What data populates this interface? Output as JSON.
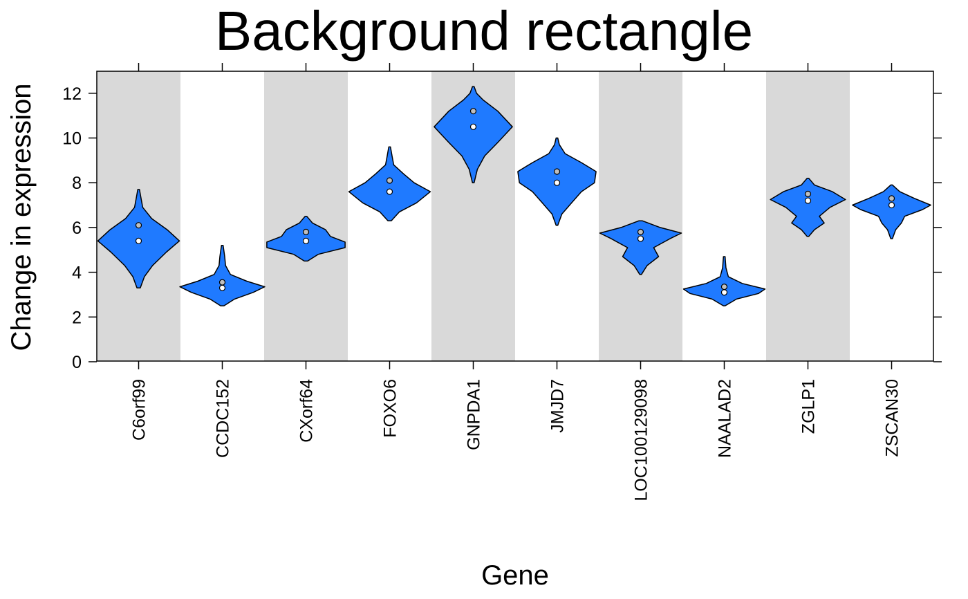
{
  "chart_data": {
    "type": "violin",
    "title": "Background rectangle",
    "xlabel": "Gene",
    "ylabel": "Change in expression",
    "ylim": [
      0,
      13
    ],
    "yticks": [
      0,
      2,
      4,
      6,
      8,
      10,
      12
    ],
    "grid": false,
    "legend": "none",
    "colors": {
      "violin_fill": "#1f7aff",
      "background_band": "#d9d9d9",
      "point_fill": "#ffffff",
      "point_fill_alt": "#bfbfbf"
    },
    "background_bands": [
      "C6orf99",
      "CXorf64",
      "GNPDA1",
      "LOC100129098",
      "ZGLP1"
    ],
    "categories": [
      "C6orf99",
      "CCDC152",
      "CXorf64",
      "FOXO6",
      "GNPDA1",
      "JMJD7",
      "LOC100129098",
      "NAALAD2",
      "ZGLP1",
      "ZSCAN30"
    ],
    "violins": [
      {
        "gene": "C6orf99",
        "min": 3.3,
        "max": 7.7,
        "profile": [
          [
            3.3,
            0.02
          ],
          [
            3.8,
            0.07
          ],
          [
            4.3,
            0.17
          ],
          [
            4.9,
            0.34
          ],
          [
            5.4,
            0.5
          ],
          [
            5.9,
            0.35
          ],
          [
            6.4,
            0.16
          ],
          [
            6.9,
            0.05
          ],
          [
            7.3,
            0.03
          ],
          [
            7.7,
            0.01
          ]
        ],
        "points": [
          5.4,
          6.1
        ]
      },
      {
        "gene": "CCDC152",
        "min": 2.5,
        "max": 5.2,
        "profile": [
          [
            2.5,
            0.02
          ],
          [
            2.8,
            0.15
          ],
          [
            3.1,
            0.38
          ],
          [
            3.35,
            0.52
          ],
          [
            3.6,
            0.3
          ],
          [
            3.9,
            0.1
          ],
          [
            4.3,
            0.04
          ],
          [
            4.7,
            0.03
          ],
          [
            5.2,
            0.01
          ]
        ],
        "points": [
          3.3,
          3.55
        ]
      },
      {
        "gene": "CXorf64",
        "min": 4.5,
        "max": 6.5,
        "profile": [
          [
            4.5,
            0.02
          ],
          [
            4.8,
            0.15
          ],
          [
            5.1,
            0.48
          ],
          [
            5.35,
            0.48
          ],
          [
            5.6,
            0.3
          ],
          [
            5.9,
            0.24
          ],
          [
            6.2,
            0.08
          ],
          [
            6.5,
            0.01
          ]
        ],
        "points": [
          5.4,
          5.8
        ]
      },
      {
        "gene": "FOXO6",
        "min": 6.3,
        "max": 9.6,
        "profile": [
          [
            6.3,
            0.02
          ],
          [
            6.7,
            0.12
          ],
          [
            7.1,
            0.33
          ],
          [
            7.6,
            0.5
          ],
          [
            8.0,
            0.3
          ],
          [
            8.4,
            0.17
          ],
          [
            8.8,
            0.05
          ],
          [
            9.2,
            0.03
          ],
          [
            9.6,
            0.01
          ]
        ],
        "points": [
          7.6,
          8.1
        ]
      },
      {
        "gene": "GNPDA1",
        "min": 8.0,
        "max": 12.3,
        "profile": [
          [
            8.0,
            0.01
          ],
          [
            8.6,
            0.05
          ],
          [
            9.2,
            0.14
          ],
          [
            9.8,
            0.3
          ],
          [
            10.5,
            0.48
          ],
          [
            11.2,
            0.3
          ],
          [
            11.7,
            0.12
          ],
          [
            12.0,
            0.04
          ],
          [
            12.3,
            0.01
          ]
        ],
        "points": [
          10.5,
          11.2
        ]
      },
      {
        "gene": "JMJD7",
        "min": 6.1,
        "max": 10.0,
        "profile": [
          [
            6.1,
            0.01
          ],
          [
            6.6,
            0.06
          ],
          [
            7.1,
            0.18
          ],
          [
            7.6,
            0.3
          ],
          [
            8.0,
            0.46
          ],
          [
            8.5,
            0.48
          ],
          [
            8.9,
            0.3
          ],
          [
            9.3,
            0.1
          ],
          [
            9.7,
            0.03
          ],
          [
            10.0,
            0.01
          ]
        ],
        "points": [
          8.0,
          8.5
        ]
      },
      {
        "gene": "LOC100129098",
        "min": 3.9,
        "max": 6.3,
        "profile": [
          [
            3.9,
            0.01
          ],
          [
            4.3,
            0.08
          ],
          [
            4.7,
            0.22
          ],
          [
            5.1,
            0.16
          ],
          [
            5.5,
            0.36
          ],
          [
            5.75,
            0.5
          ],
          [
            6.0,
            0.24
          ],
          [
            6.3,
            0.02
          ]
        ],
        "points": [
          5.5,
          5.8
        ]
      },
      {
        "gene": "NAALAD2",
        "min": 2.5,
        "max": 4.7,
        "profile": [
          [
            2.5,
            0.01
          ],
          [
            2.8,
            0.15
          ],
          [
            3.05,
            0.42
          ],
          [
            3.25,
            0.5
          ],
          [
            3.5,
            0.22
          ],
          [
            3.8,
            0.05
          ],
          [
            4.2,
            0.02
          ],
          [
            4.7,
            0.01
          ]
        ],
        "points": [
          3.1,
          3.35
        ]
      },
      {
        "gene": "ZGLP1",
        "min": 5.6,
        "max": 8.2,
        "profile": [
          [
            5.6,
            0.01
          ],
          [
            5.9,
            0.08
          ],
          [
            6.2,
            0.2
          ],
          [
            6.5,
            0.14
          ],
          [
            6.9,
            0.27
          ],
          [
            7.25,
            0.46
          ],
          [
            7.6,
            0.3
          ],
          [
            7.9,
            0.08
          ],
          [
            8.2,
            0.01
          ]
        ],
        "points": [
          7.2,
          7.5
        ]
      },
      {
        "gene": "ZSCAN30",
        "min": 5.5,
        "max": 7.9,
        "profile": [
          [
            5.5,
            0.01
          ],
          [
            5.9,
            0.05
          ],
          [
            6.2,
            0.12
          ],
          [
            6.5,
            0.16
          ],
          [
            6.8,
            0.38
          ],
          [
            7.0,
            0.48
          ],
          [
            7.3,
            0.28
          ],
          [
            7.6,
            0.1
          ],
          [
            7.9,
            0.01
          ]
        ],
        "points": [
          7.0,
          7.3
        ]
      }
    ]
  }
}
